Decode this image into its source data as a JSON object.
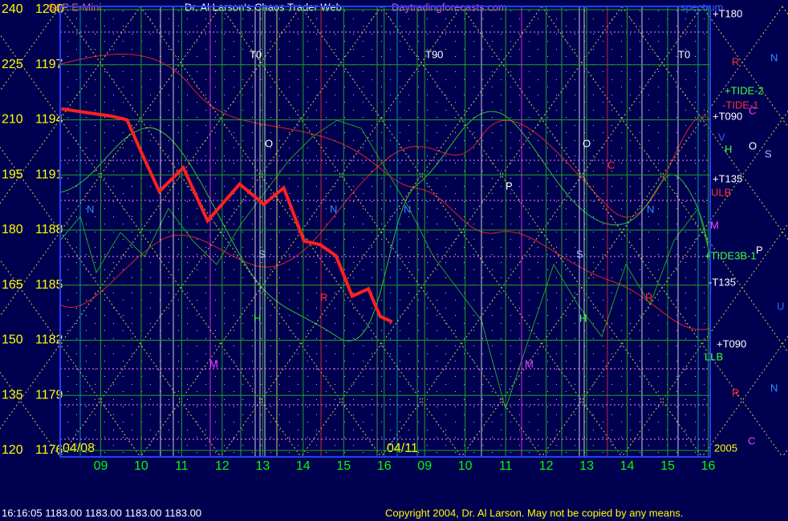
{
  "chart_data": {
    "type": "line",
    "title": "Dr. Al Larson's Chaos Trader Web",
    "instrument": "S&P E-Mini",
    "website": "Daytradingforecasts.com",
    "spectrum_label": "spectrum",
    "date_labels": [
      "04/08",
      "04/11"
    ],
    "status": "16:16:05  1183.00 1183.00 1183.00 1183.00",
    "copyright": "Copyright 2004, Dr. Al Larson. May not be copied by any means.",
    "xlim": [
      8,
      24.05
    ],
    "xticks": [
      {
        "value": 9,
        "label": "09"
      },
      10,
      11,
      12,
      13,
      14,
      15,
      16,
      {
        "value": 17,
        "label": "09"
      },
      {
        "value": 18,
        "label": "10"
      },
      {
        "value": 19,
        "label": "11"
      },
      {
        "value": 20,
        "label": "12"
      },
      {
        "value": 21,
        "label": "13"
      },
      {
        "value": 22,
        "label": "14"
      },
      {
        "value": 23,
        "label": "15"
      },
      {
        "value": 24,
        "label": "16"
      }
    ],
    "ylim": [
      1176,
      1200
    ],
    "yticks": [
      1200,
      1197,
      1194,
      1191,
      1188,
      1185,
      1182,
      1179,
      1176
    ],
    "y2lim": [
      120,
      240
    ],
    "y2ticks": [
      240,
      225,
      210,
      195,
      180,
      165,
      150,
      135,
      120
    ],
    "grid": true,
    "series": [
      {
        "color": "#ff2020",
        "x": [
          8.03,
          9.26,
          9.65,
          10.05,
          10.45,
          11.04,
          11.64,
          12.43,
          13.03,
          13.52,
          14.02,
          14.42,
          14.81,
          15.21,
          15.61,
          15.9,
          16.2
        ],
        "values": [
          1194.6,
          1194.2,
          1194.0,
          1192.0,
          1190.1,
          1191.4,
          1188.5,
          1190.5,
          1189.4,
          1190.3,
          1187.4,
          1187.2,
          1186.6,
          1184.4,
          1184.8,
          1183.3,
          1183.0
        ]
      }
    ],
    "annotations": [
      {
        "text": "+T180",
        "color": "#ffffff"
      },
      {
        "text": "R",
        "color": "#ff3030"
      },
      {
        "text": "N",
        "color": "#3090ff"
      },
      {
        "text": "+TIDE-2",
        "color": "#40ff40"
      },
      {
        "text": "-TIDE-1",
        "color": "#ff3030"
      },
      {
        "text": "C",
        "color": "#ff40ff"
      },
      {
        "text": "+T090",
        "color": "#ffffff"
      },
      {
        "text": "H",
        "color": "#40ff40"
      },
      {
        "text": "O",
        "color": "#ffffff"
      },
      {
        "text": "S",
        "color": "#a0c0ff"
      },
      {
        "text": "V",
        "color": "#3060ff"
      },
      {
        "text": "+T135",
        "color": "#ffffff"
      },
      {
        "text": "ULB",
        "color": "#ff3030"
      },
      {
        "text": "M",
        "color": "#ff40ff"
      },
      {
        "text": "P",
        "color": "#ffffff"
      },
      {
        "text": "+TIDE3B-1",
        "color": "#40ff40"
      },
      {
        "text": "-T135",
        "color": "#ffffff"
      },
      {
        "text": "U",
        "color": "#3060ff"
      },
      {
        "text": "+T090",
        "color": "#ffffff"
      },
      {
        "text": "LLB",
        "color": "#40ff40"
      },
      {
        "text": "R",
        "color": "#ff3030"
      },
      {
        "text": "N",
        "color": "#3090ff"
      },
      {
        "text": "C",
        "color": "#ff40ff"
      },
      {
        "text": "2005",
        "color": "#ffff00"
      },
      {
        "text": "T0",
        "color": "#ffffff"
      },
      {
        "text": "T90",
        "color": "#ffffff"
      },
      {
        "text": "T0",
        "color": "#ffffff"
      },
      {
        "text": "O",
        "color": "#ffffff"
      },
      {
        "text": "O",
        "color": "#ffffff"
      },
      {
        "text": "P",
        "color": "#ffffff"
      },
      {
        "text": "N",
        "color": "#3090ff"
      },
      {
        "text": "N",
        "color": "#3090ff"
      },
      {
        "text": "N",
        "color": "#3090ff"
      },
      {
        "text": "N",
        "color": "#3090ff"
      },
      {
        "text": "S",
        "color": "#a0c0ff"
      },
      {
        "text": "S",
        "color": "#a0c0ff"
      },
      {
        "text": "H",
        "color": "#40ff40"
      },
      {
        "text": "H",
        "color": "#40ff40"
      },
      {
        "text": "R",
        "color": "#ff3030"
      },
      {
        "text": "R",
        "color": "#ff3030"
      },
      {
        "text": "M",
        "color": "#ff40ff"
      },
      {
        "text": "M",
        "color": "#ff40ff"
      },
      {
        "text": "C",
        "color": "#ff3030"
      }
    ]
  }
}
